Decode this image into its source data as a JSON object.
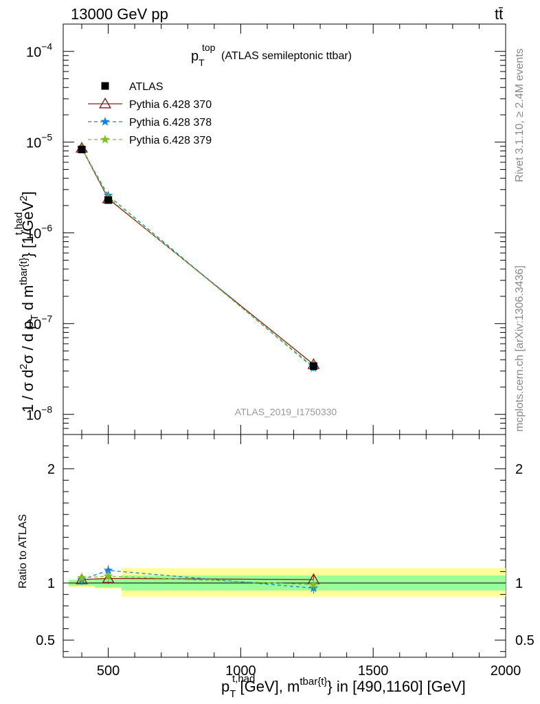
{
  "header": {
    "left": "13000 GeV pp",
    "right": "tt̄",
    "right_base": "tt",
    "side_top": "Rivet 3.1.10, ≥ 2.4M events",
    "side_bottom": "mcplots.cern.ch [arXiv:1306.3436]"
  },
  "title": {
    "main": "p",
    "sub": "T",
    "sup": "top",
    "rest": "(ATLAS semileptonic ttbar)"
  },
  "watermark": "ATLAS_2019_I1750330",
  "axis_labels": {
    "y_main": {
      "p1": "1 / σ d",
      "s1": "2",
      "p2": "σ / d p",
      "s2sup": "t,had",
      "s2sub": "T",
      "p3": " d m",
      "s3": "tbar{t}",
      "p4": "} [1/GeV",
      "s4": "2",
      "p5": "]"
    },
    "y_ratio": "Ratio to ATLAS",
    "x": {
      "p1": "p",
      "s1sup": "t,had",
      "s1sub": "T",
      "p2": " [GeV], m",
      "s2": "tbar{t}",
      "p3": "} in [490,1160] [GeV]"
    }
  },
  "chart_data": {
    "type": "scatter",
    "x_range": [
      330,
      2000
    ],
    "x_ticks": [
      500,
      1000,
      1500,
      2000
    ],
    "x_tick_labels": [
      "500",
      "1000",
      "1500",
      "2000"
    ],
    "y_scale": "log",
    "y_range": [
      6e-09,
      0.0002
    ],
    "y_ticks": [
      1e-08,
      1e-07,
      1e-06,
      1e-05,
      0.0001
    ],
    "y_tick_labels": [
      {
        "base": "10",
        "exp": "−8"
      },
      {
        "base": "10",
        "exp": "−7"
      },
      {
        "base": "10",
        "exp": "−6"
      },
      {
        "base": "10",
        "exp": "−5"
      },
      {
        "base": "10",
        "exp": "−4"
      }
    ],
    "ratio_range": [
      0.35,
      2.3
    ],
    "ratio_ticks": [
      0.5,
      1,
      2
    ],
    "ratio_tick_labels": [
      "0.5",
      "1",
      "2"
    ],
    "x": [
      400,
      500,
      1275
    ],
    "bins": [
      [
        350,
        450
      ],
      [
        450,
        550
      ],
      [
        550,
        2000
      ]
    ],
    "ratio_bands": {
      "stat": [
        [
          0.975,
          1.025
        ],
        [
          0.96,
          1.04
        ],
        [
          0.935,
          1.065
        ]
      ],
      "total": [
        [
          0.965,
          1.035
        ],
        [
          0.95,
          1.05
        ],
        [
          0.88,
          1.13
        ]
      ]
    },
    "legend_position": "top-left",
    "series": [
      {
        "name": "ATLAS",
        "color": "#000000",
        "marker": "square",
        "values": [
          8.3e-06,
          2.3e-06,
          3.4e-08
        ],
        "ratio": [
          1.0,
          1.0,
          1.0
        ]
      },
      {
        "name": "Pythia 6.428 370",
        "color": "#8b1a1a",
        "marker": "triangle",
        "values": [
          8.6e-06,
          2.38e-06,
          3.55e-08
        ],
        "ratio": [
          1.03,
          1.04,
          1.03
        ]
      },
      {
        "name": "Pythia 6.428 378",
        "color": "#1a7fd6",
        "marker": "star",
        "values": [
          8.5e-06,
          2.58e-06,
          3.25e-08
        ],
        "ratio": [
          1.03,
          1.11,
          0.955
        ]
      },
      {
        "name": "Pythia 6.428 379",
        "color": "#7fbf1f",
        "marker": "star",
        "values": [
          8.65e-06,
          2.44e-06,
          3.35e-08
        ],
        "ratio": [
          1.045,
          1.06,
          0.985
        ]
      }
    ]
  }
}
